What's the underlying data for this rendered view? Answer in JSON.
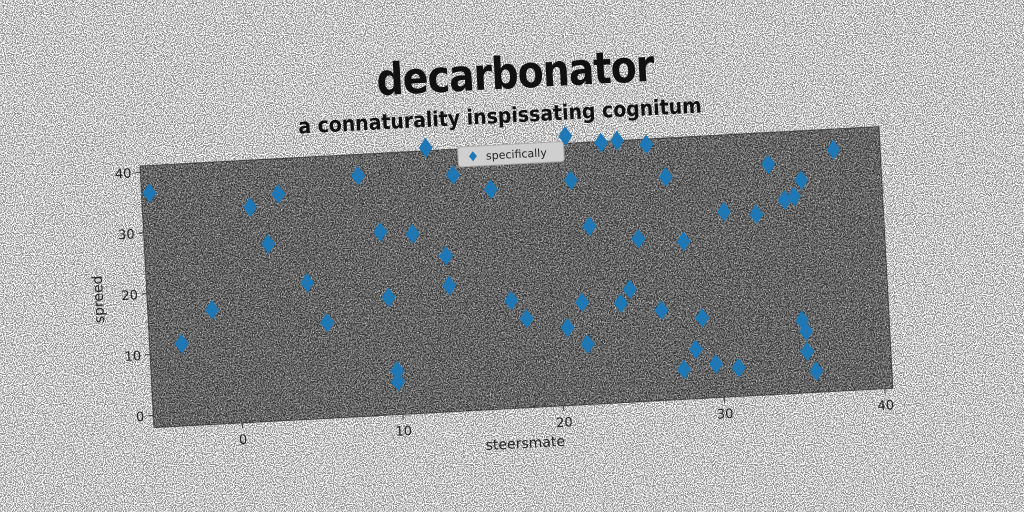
{
  "chart_data": {
    "type": "scatter",
    "title": "decarbonator",
    "subtitle": "a connaturality inspissating cognitum",
    "xlabel": "steersmate",
    "ylabel": "spreed",
    "xlim": [
      -5.5,
      40.5
    ],
    "ylim": [
      -2,
      41
    ],
    "xticks": [
      0,
      10,
      20,
      30,
      40
    ],
    "yticks": [
      0,
      10,
      20,
      30,
      40
    ],
    "grid": false,
    "legend_position": "top-center",
    "series": [
      {
        "name": "specifically",
        "marker": "diamond",
        "color": "#1f77b4",
        "x": [
          -5,
          -3.5,
          -1.5,
          1.2,
          2.2,
          3,
          4.5,
          5.6,
          8,
          9.2,
          9.5,
          9.8,
          9.8,
          11.2,
          12.3,
          13.2,
          13.3,
          13.9,
          16.2,
          17.1,
          18,
          20.5,
          21,
          21.2,
          21.5,
          21.7,
          22.2,
          23.2,
          23.9,
          24.2,
          24.5,
          25.2,
          26,
          26.4,
          27.1,
          27.6,
          28,
          28.4,
          28.9,
          29.6,
          30.6,
          31,
          32.6,
          33.5,
          34.4,
          35,
          35.1,
          35.3,
          35.3,
          35.5,
          35.8,
          37.6
        ],
        "y": [
          36.5,
          11.5,
          16.8,
          33.3,
          27.1,
          35.2,
          20.4,
          13.7,
          37.5,
          28.1,
          17.3,
          5.2,
          3.4,
          27.5,
          41.5,
          23.6,
          18.7,
          36.8,
          34.1,
          15.7,
          12.6,
          10.8,
          42.2,
          34.9,
          14.8,
          7.9,
          27.2,
          40.8,
          14.3,
          41,
          16.5,
          24.7,
          40.1,
          12.8,
          34.6,
          2.9,
          23.9,
          6.1,
          11.2,
          3.5,
          28.4,
          2.7,
          27.7,
          35.8,
          29.8,
          30.3,
          9.9,
          8.1,
          4.8,
          32.9,
          1.5,
          37.6
        ]
      }
    ]
  }
}
